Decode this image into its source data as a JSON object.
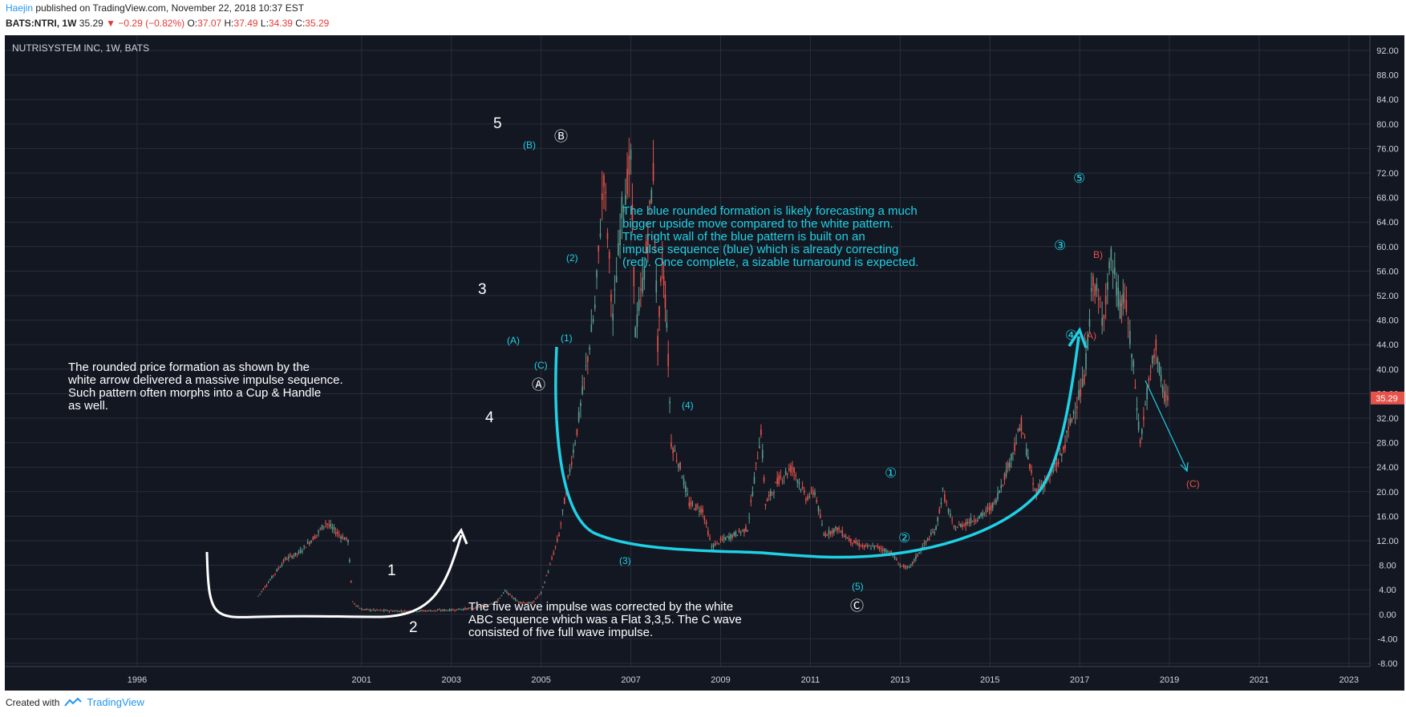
{
  "header": {
    "author": "Haejin",
    "published": "published on TradingView.com, November 22, 2018 10:37 EST",
    "symbol": "BATS:NTRI, 1W",
    "last": "35.29",
    "change": "−0.29 (−0.82%)",
    "o_label": "O:",
    "o_value": "37.07",
    "h_label": "H:",
    "h_value": "37.49",
    "l_label": "L:",
    "l_value": "34.39",
    "c_label": "C:",
    "c_value": "35.29"
  },
  "footer": {
    "created_with": "Created with",
    "brand": "TradingView"
  },
  "colors": {
    "background": "#131722",
    "grid": "#2a2e39",
    "up": "#5b9e8f",
    "down": "#e5534b",
    "accent": "#1fd1e4",
    "white": "#ffffff",
    "price_tag": "#e5534b"
  },
  "chart_data": {
    "type": "candlestick",
    "title": "NUTRISYSTEM INC, 1W, BATS",
    "x_ticks": [
      "1996",
      "2001",
      "2003",
      "2005",
      "2007",
      "2009",
      "2011",
      "2013",
      "2015",
      "2017",
      "2019",
      "2021",
      "2023"
    ],
    "y_ticks": [
      "92.00",
      "88.00",
      "84.00",
      "80.00",
      "76.00",
      "72.00",
      "68.00",
      "64.00",
      "60.00",
      "56.00",
      "52.00",
      "48.00",
      "44.00",
      "40.00",
      "36.00",
      "32.00",
      "28.00",
      "24.00",
      "20.00",
      "16.00",
      "12.00",
      "8.00",
      "4.00",
      "0.00",
      "-4.00",
      "-8.00"
    ],
    "ylim": [
      -8,
      93
    ],
    "last_price": "35.29",
    "price_path": [
      [
        1998.7,
        3
      ],
      [
        1999.0,
        6
      ],
      [
        1999.3,
        9
      ],
      [
        1999.6,
        10
      ],
      [
        2000.0,
        13
      ],
      [
        2000.2,
        15
      ],
      [
        2000.5,
        13
      ],
      [
        2000.7,
        12
      ],
      [
        2000.8,
        2
      ],
      [
        2001.0,
        0.8
      ],
      [
        2001.5,
        0.6
      ],
      [
        2002.0,
        0.5
      ],
      [
        2002.5,
        0.6
      ],
      [
        2003.0,
        0.7
      ],
      [
        2003.5,
        1.0
      ],
      [
        2004.0,
        2
      ],
      [
        2004.2,
        3.8
      ],
      [
        2004.5,
        2.0
      ],
      [
        2004.8,
        1.8
      ],
      [
        2005.0,
        3.5
      ],
      [
        2005.2,
        8
      ],
      [
        2005.4,
        13
      ],
      [
        2005.6,
        22
      ],
      [
        2005.8,
        30
      ],
      [
        2006.0,
        40
      ],
      [
        2006.2,
        50
      ],
      [
        2006.4,
        72
      ],
      [
        2006.6,
        48
      ],
      [
        2006.8,
        66
      ],
      [
        2007.0,
        74
      ],
      [
        2007.1,
        46
      ],
      [
        2007.3,
        56
      ],
      [
        2007.5,
        72
      ],
      [
        2007.6,
        44
      ],
      [
        2007.7,
        58
      ],
      [
        2007.8,
        48
      ],
      [
        2007.9,
        28
      ],
      [
        2008.1,
        24
      ],
      [
        2008.3,
        18
      ],
      [
        2008.6,
        17
      ],
      [
        2008.8,
        11
      ],
      [
        2009.0,
        12
      ],
      [
        2009.3,
        13
      ],
      [
        2009.6,
        14
      ],
      [
        2009.9,
        30
      ],
      [
        2010.0,
        18
      ],
      [
        2010.3,
        22
      ],
      [
        2010.6,
        24
      ],
      [
        2010.9,
        19
      ],
      [
        2011.1,
        20
      ],
      [
        2011.3,
        13
      ],
      [
        2011.6,
        14
      ],
      [
        2011.9,
        12
      ],
      [
        2012.2,
        11
      ],
      [
        2012.5,
        11
      ],
      [
        2012.8,
        10
      ],
      [
        2013.0,
        8
      ],
      [
        2013.2,
        7.5
      ],
      [
        2013.5,
        11
      ],
      [
        2013.8,
        14
      ],
      [
        2013.95,
        20
      ],
      [
        2014.2,
        14
      ],
      [
        2014.5,
        15
      ],
      [
        2014.8,
        16
      ],
      [
        2015.1,
        18
      ],
      [
        2015.4,
        24
      ],
      [
        2015.7,
        31
      ],
      [
        2016.0,
        20
      ],
      [
        2016.3,
        22
      ],
      [
        2016.6,
        26
      ],
      [
        2016.9,
        34
      ],
      [
        2017.1,
        38
      ],
      [
        2017.3,
        55
      ],
      [
        2017.5,
        48
      ],
      [
        2017.7,
        58
      ],
      [
        2017.9,
        50
      ],
      [
        2018.0,
        52
      ],
      [
        2018.2,
        40
      ],
      [
        2018.35,
        28
      ],
      [
        2018.5,
        36
      ],
      [
        2018.7,
        44
      ],
      [
        2018.85,
        36
      ],
      [
        2019.0,
        35.29
      ]
    ]
  },
  "annotations": {
    "waves_white": [
      "1",
      "2",
      "3",
      "4",
      "5"
    ],
    "abc_circled": [
      "Ⓐ",
      "Ⓑ",
      "Ⓒ"
    ],
    "cyan_small": [
      "(B)",
      "(A)",
      "(C)",
      "(2)",
      "(1)",
      "(4)",
      "(3)",
      "(5)"
    ],
    "circled_cyan": [
      "①",
      "②",
      "③",
      "④",
      "⑤"
    ],
    "red_labels": [
      "B)",
      "(A)",
      "(C)"
    ],
    "note_white_left": [
      "The rounded price formation as shown by the",
      "white arrow delivered a massive impulse sequence.",
      "Such pattern often morphs into a Cup & Handle",
      "as well."
    ],
    "note_white_bottom": [
      "The five wave impulse was corrected by the white",
      "ABC sequence which was a Flat 3,3,5. The C wave",
      "consisted of five full wave impulse."
    ],
    "note_cyan_top": [
      "The blue rounded formation is likely forecasting a much",
      "bigger upside move compared to the white pattern.",
      "The right wall of the blue pattern is built on an",
      "impulse sequence (blue) which is already correcting",
      "(red). Once complete, a sizable turnaround is expected."
    ]
  }
}
